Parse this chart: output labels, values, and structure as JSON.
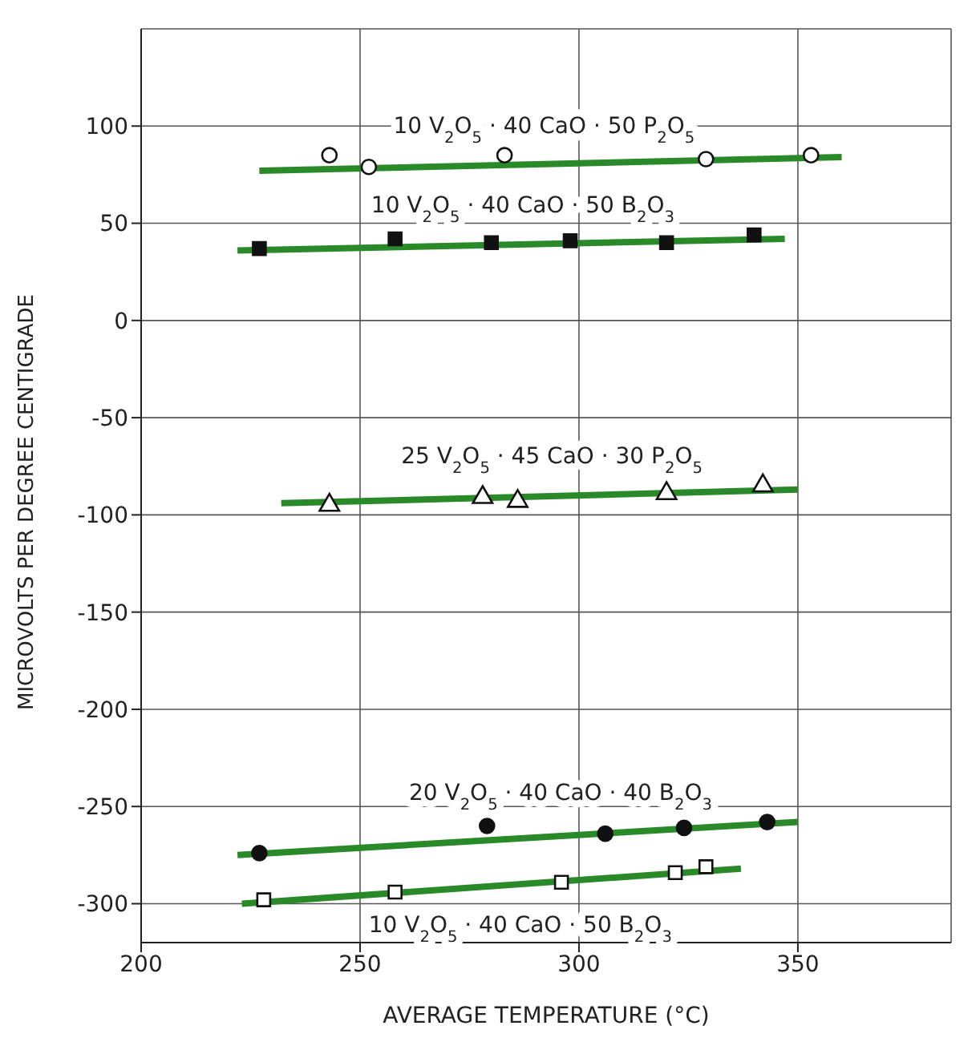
{
  "chart_data": {
    "type": "scatter",
    "xlabel": "AVERAGE TEMPERATURE (°C)",
    "ylabel": "MICROVOLTS PER DEGREE CENTIGRADE",
    "xlim": [
      200,
      385
    ],
    "ylim": [
      -320,
      150
    ],
    "xticks": [
      200,
      250,
      300,
      350
    ],
    "yticks": [
      100,
      50,
      0,
      -50,
      -100,
      -150,
      -200,
      -250,
      -300
    ],
    "grid": true,
    "legend": false,
    "series": [
      {
        "name": "10 V$_{2}$O$_{5}$ · 40 CaO · 50 P$_{2}$O$_{5}$",
        "color": "#ffffff",
        "marker": "circle",
        "x": [
          243,
          252,
          283,
          329,
          353
        ],
        "values": [
          85,
          79,
          85,
          83,
          85
        ]
      },
      {
        "type": "line",
        "color": "#2a8a2a",
        "x": [
          227,
          360
        ],
        "values": [
          77,
          84
        ]
      },
      {
        "name": "10 V$_{2}$O$_{5}$ · 40 CaO · 50 B$_{2}$O$_{3}$",
        "color": "#111111",
        "marker": "square",
        "x": [
          227,
          258,
          280,
          298,
          320,
          340
        ],
        "values": [
          37,
          42,
          40,
          41,
          40,
          44
        ]
      },
      {
        "type": "line",
        "color": "#2a8a2a",
        "x": [
          222,
          347
        ],
        "values": [
          36,
          42
        ]
      },
      {
        "name": "25 V$_{2}$O$_{5}$ · 45 CaO · 30 P$_{2}$O$_{5}$",
        "color": "#ffffff",
        "marker": "triangle",
        "x": [
          243,
          278,
          286,
          320,
          342
        ],
        "values": [
          -95,
          -91,
          -93,
          -89,
          -85
        ]
      },
      {
        "type": "line",
        "color": "#2a8a2a",
        "x": [
          232,
          350
        ],
        "values": [
          -94,
          -87
        ]
      },
      {
        "name": "20 V$_{2}$O$_{5}$ · 40 CaO · 40 B$_{2}$O$_{3}$",
        "color": "#111111",
        "marker": "circle",
        "x": [
          227,
          279,
          306,
          324,
          343
        ],
        "values": [
          -274,
          -260,
          -264,
          -261,
          -258
        ]
      },
      {
        "type": "line",
        "color": "#2a8a2a",
        "x": [
          222,
          350
        ],
        "values": [
          -275,
          -258
        ]
      },
      {
        "name": "10 V$_{2}$O$_{5}$ · 40 CaO · 50 B$_{2}$O$_{3}$",
        "color": "#ffffff",
        "marker": "square",
        "x": [
          228,
          258,
          296,
          322,
          329
        ],
        "values": [
          -298,
          -294,
          -289,
          -284,
          -281
        ]
      },
      {
        "type": "line",
        "color": "#2a8a2a",
        "x": [
          223,
          337
        ],
        "values": [
          -300,
          -282
        ]
      }
    ]
  }
}
